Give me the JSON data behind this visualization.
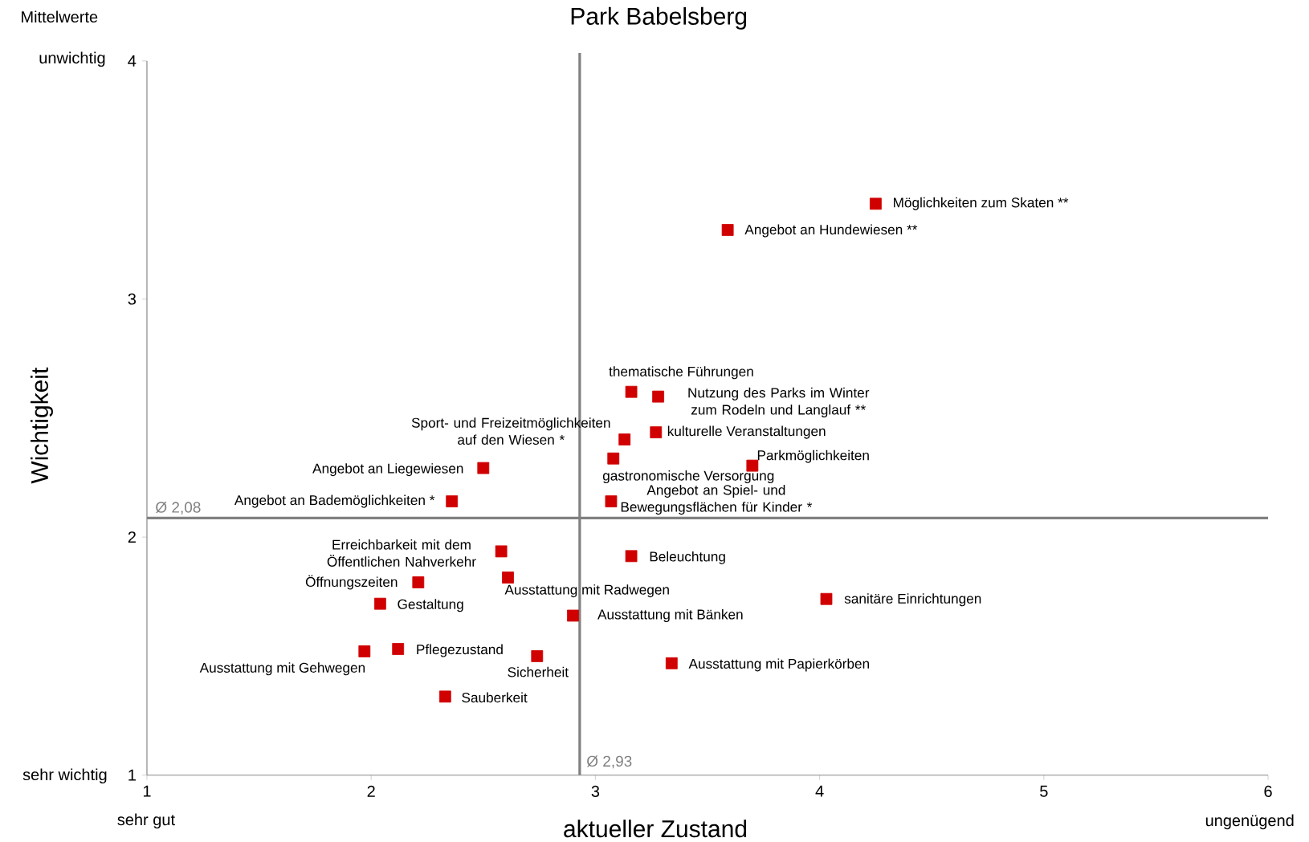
{
  "chart_data": {
    "type": "scatter",
    "title": "Park Babelsberg",
    "xlabel": "aktueller Zustand",
    "ylabel": "Wichtigkeit",
    "x": [
      4.25,
      3.59,
      3.16,
      3.28,
      3.27,
      3.13,
      3.08,
      3.7,
      3.07,
      2.5,
      2.36,
      2.58,
      3.16,
      2.21,
      2.61,
      2.04,
      4.03,
      2.9,
      1.97,
      2.12,
      2.74,
      3.34,
      2.33
    ],
    "series": [
      {
        "color": "#d00000",
        "values": [
          3.4,
          3.29,
          2.61,
          2.59,
          2.44,
          2.41,
          2.33,
          2.3,
          2.15,
          2.29,
          2.15,
          1.94,
          1.92,
          1.81,
          1.83,
          1.72,
          1.74,
          1.67,
          1.52,
          1.53,
          1.5,
          1.47,
          1.33
        ]
      }
    ],
    "marker": "square",
    "xlim": [
      1,
      6
    ],
    "ylim": [
      1,
      4
    ],
    "xticks": [
      1,
      2,
      3,
      4,
      5,
      6
    ],
    "yticks": [
      1,
      2,
      3,
      4
    ],
    "grid": false,
    "ref_lines": [
      {
        "axis": "y",
        "value": 2.08,
        "label": "Ø 2,08",
        "color": "#808080"
      },
      {
        "axis": "x",
        "value": 2.93,
        "label": "Ø 2,93",
        "color": "#808080"
      }
    ],
    "annotations": [
      {
        "text": "Möglichkeiten zum Skaten **",
        "x": 4.25,
        "y": 3.4
      },
      {
        "text": "Angebot an Hundewiesen **",
        "x": 3.59,
        "y": 3.29
      },
      {
        "text": "thematische Führungen",
        "x": 3.16,
        "y": 2.61
      },
      {
        "text": "Nutzung des Parks im Winter zum Rodeln und Langlauf **",
        "x": 3.28,
        "y": 2.59
      },
      {
        "text": "kulturelle Veranstaltungen",
        "x": 3.27,
        "y": 2.44
      },
      {
        "text": "Sport- und Freizeitmöglichkeiten auf den Wiesen *",
        "x": 3.13,
        "y": 2.41
      },
      {
        "text": "gastronomische Versorgung",
        "x": 3.08,
        "y": 2.33
      },
      {
        "text": "Parkmöglichkeiten",
        "x": 3.7,
        "y": 2.3
      },
      {
        "text": "Angebot an Spiel- und Bewegungsflächen für Kinder *",
        "x": 3.07,
        "y": 2.15
      },
      {
        "text": "Angebot an Liegewiesen",
        "x": 2.5,
        "y": 2.29
      },
      {
        "text": "Angebot an Bademöglichkeiten *",
        "x": 2.36,
        "y": 2.15
      },
      {
        "text": "Erreichbarkeit mit dem Öffentlichen Nahverkehr",
        "x": 2.58,
        "y": 1.94
      },
      {
        "text": "Beleuchtung",
        "x": 3.16,
        "y": 1.92
      },
      {
        "text": "Öffnungszeiten",
        "x": 2.21,
        "y": 1.81
      },
      {
        "text": "Ausstattung mit Radwegen",
        "x": 2.61,
        "y": 1.83
      },
      {
        "text": "Gestaltung",
        "x": 2.04,
        "y": 1.72
      },
      {
        "text": "sanitäre Einrichtungen",
        "x": 4.03,
        "y": 1.74
      },
      {
        "text": "Ausstattung mit Bänken",
        "x": 2.9,
        "y": 1.67
      },
      {
        "text": "Ausstattung mit Gehwegen",
        "x": 1.97,
        "y": 1.52
      },
      {
        "text": "Pflegezustand",
        "x": 2.12,
        "y": 1.53
      },
      {
        "text": "Sicherheit",
        "x": 2.74,
        "y": 1.5
      },
      {
        "text": "Ausstattung mit Papierkörben",
        "x": 3.34,
        "y": 1.47
      },
      {
        "text": "Sauberkeit",
        "x": 2.33,
        "y": 1.33
      },
      "Mittelwerte",
      "sehr gut",
      "ungenügend",
      "unwichtig",
      "sehr wichtig"
    ]
  }
}
